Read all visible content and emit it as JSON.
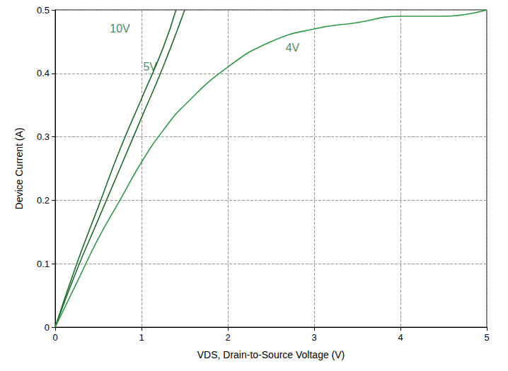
{
  "chart_data": {
    "type": "line",
    "xlabel": "VDS, Drain-to-Source Voltage (V)",
    "ylabel": "Device Current (A)",
    "xlim": [
      0,
      5
    ],
    "xticks": [
      0,
      1,
      2,
      3,
      4,
      5
    ],
    "ylim": [
      0,
      0.5
    ],
    "yticks": [
      0,
      0.1,
      0.2,
      0.3,
      0.4,
      0.5
    ],
    "grid": true,
    "series": [
      {
        "name": "10V",
        "color": "#1e6b2e",
        "x": [
          0,
          0.25,
          0.5,
          0.75,
          1.0,
          1.25,
          1.4
        ],
        "values": [
          0,
          0.1,
          0.19,
          0.28,
          0.36,
          0.44,
          0.5
        ]
      },
      {
        "name": "5V",
        "color": "#1e6b2e",
        "x": [
          0,
          0.25,
          0.5,
          0.75,
          1.0,
          1.25,
          1.5
        ],
        "values": [
          0,
          0.09,
          0.17,
          0.25,
          0.33,
          0.41,
          0.5
        ]
      },
      {
        "name": "4V",
        "color": "#2e9a4a",
        "x": [
          0,
          0.25,
          0.5,
          0.75,
          1.0,
          1.25,
          1.5,
          2.0,
          2.5,
          3.0,
          3.5,
          4.0,
          4.5,
          5.0
        ],
        "values": [
          0,
          0.07,
          0.14,
          0.2,
          0.26,
          0.31,
          0.35,
          0.41,
          0.45,
          0.47,
          0.48,
          0.49,
          0.49,
          0.5
        ]
      }
    ],
    "annotations": [
      {
        "text": "10V",
        "x": 0.75,
        "y": 0.47
      },
      {
        "text": "5V",
        "x": 1.1,
        "y": 0.41
      },
      {
        "text": "4V",
        "x": 2.75,
        "y": 0.44
      }
    ]
  }
}
